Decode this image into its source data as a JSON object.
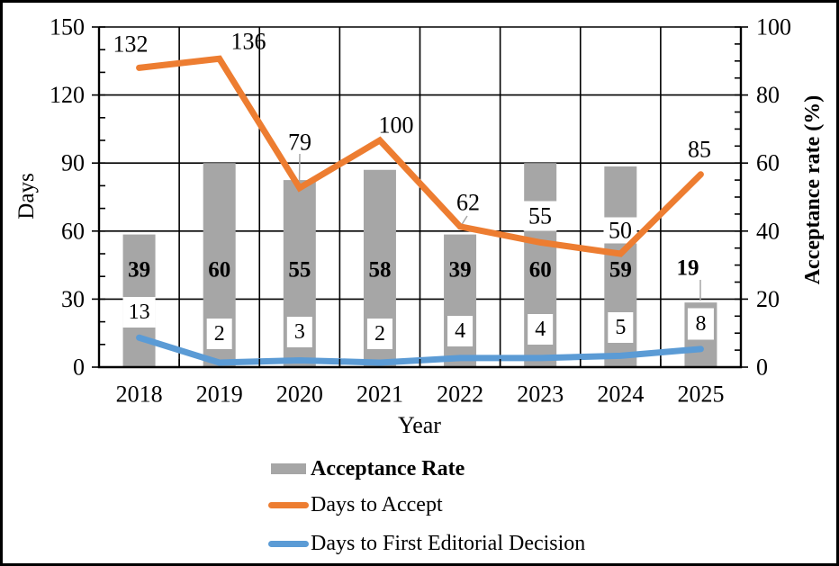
{
  "chart_data": {
    "type": "combo",
    "categories": [
      "2018",
      "2019",
      "2020",
      "2021",
      "2022",
      "2023",
      "2024",
      "2025"
    ],
    "x_axis": {
      "title": "Year"
    },
    "y_left": {
      "title": "Days",
      "min": 0,
      "max": 150,
      "major_unit": 30,
      "minor_unit": 10,
      "ticks": [
        "0",
        "30",
        "60",
        "90",
        "120",
        "150"
      ]
    },
    "y_right": {
      "title": "Acceptance rate (%)",
      "min": 0,
      "max": 100,
      "major_unit": 20,
      "minor_unit": 5,
      "ticks": [
        "0",
        "20",
        "40",
        "60",
        "80",
        "100"
      ]
    },
    "grid": true,
    "legend_position": "bottom",
    "series": [
      {
        "name": "Acceptance Rate",
        "type": "bar",
        "axis": "right",
        "color": "#A6A6A6",
        "values": [
          39,
          60,
          55,
          58,
          39,
          60,
          59,
          19
        ],
        "labels_bold": true
      },
      {
        "name": "Days to Accept",
        "type": "line",
        "axis": "left",
        "color": "#ED7D31",
        "values": [
          132,
          136,
          79,
          100,
          62,
          55,
          50,
          85
        ]
      },
      {
        "name": "Days to First Editorial Decision",
        "type": "line",
        "axis": "left",
        "color": "#5B9BD5",
        "values": [
          13,
          2,
          3,
          2,
          4,
          4,
          5,
          8
        ],
        "labels_boxed": true
      }
    ]
  },
  "colors": {
    "bar": "#A6A6A6",
    "accept_line": "#ED7D31",
    "decision_line": "#5B9BD5",
    "leader_line": "#A6A6A6",
    "axis": "#000000",
    "text": "#000000",
    "background": "#FFFFFF",
    "border": "#000000"
  }
}
